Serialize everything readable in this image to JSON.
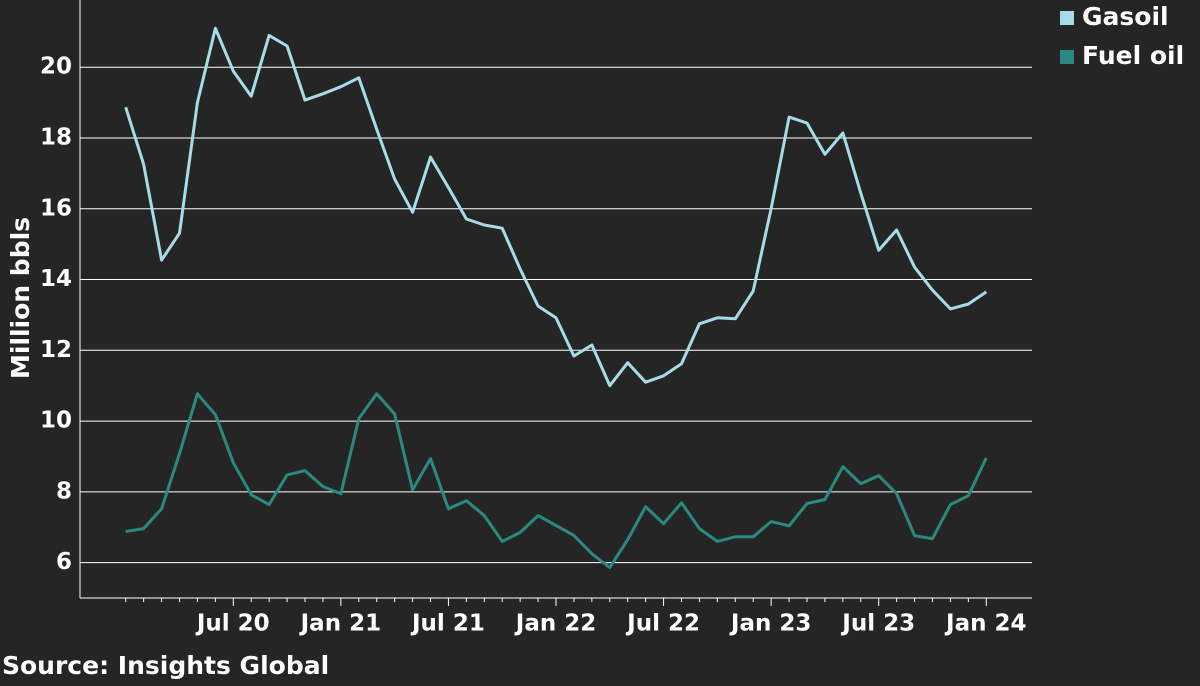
{
  "chart_data": {
    "type": "line",
    "y_label": "Million bbls",
    "source": "Source: Insights Global",
    "categories": [
      null,
      null,
      null,
      null,
      null,
      null,
      "Jul 20",
      null,
      null,
      null,
      null,
      null,
      "Jan 21",
      null,
      null,
      null,
      null,
      null,
      "Jul 21",
      null,
      null,
      null,
      null,
      null,
      "Jan 22",
      null,
      null,
      null,
      null,
      null,
      "Jul 22",
      null,
      null,
      null,
      null,
      null,
      "Jan 23",
      null,
      null,
      null,
      null,
      null,
      "Jul 23",
      null,
      null,
      null,
      null,
      null,
      "Jan 24"
    ],
    "series": [
      {
        "name": "Gasoil",
        "color": "#a6dce8",
        "values": [
          18.87,
          17.26,
          14.55,
          15.31,
          19.0,
          21.1,
          19.89,
          19.18,
          20.9,
          20.6,
          19.07,
          19.25,
          19.45,
          19.7,
          18.25,
          16.84,
          15.9,
          17.46,
          16.6,
          15.71,
          15.54,
          15.45,
          14.3,
          13.25,
          12.92,
          11.84,
          12.15,
          11.0,
          11.65,
          11.1,
          11.28,
          11.62,
          12.75,
          12.92,
          12.89,
          13.68,
          16.0,
          18.59,
          18.42,
          17.54,
          18.14,
          16.44,
          14.83,
          15.4,
          14.35,
          13.7,
          13.17,
          13.31,
          13.65
        ]
      },
      {
        "name": "Fuel oil",
        "color": "#2a8a80",
        "values": [
          6.88,
          6.96,
          7.52,
          9.08,
          10.77,
          10.18,
          8.82,
          7.92,
          7.64,
          8.48,
          8.6,
          8.15,
          7.95,
          10.07,
          10.77,
          10.2,
          8.06,
          8.94,
          7.52,
          7.75,
          7.33,
          6.6,
          6.85,
          7.33,
          7.05,
          6.77,
          6.25,
          5.86,
          6.65,
          7.58,
          7.1,
          7.69,
          6.96,
          6.6,
          6.73,
          6.73,
          7.16,
          7.04,
          7.67,
          7.78,
          8.71,
          8.23,
          8.46,
          7.95,
          6.76,
          6.68,
          7.64,
          7.89,
          8.96
        ]
      }
    ],
    "ylim": [
      5,
      21.9
    ],
    "yticks": [
      6,
      8,
      10,
      12,
      14,
      16,
      18,
      20
    ],
    "grid": true,
    "legend": "top-right"
  }
}
